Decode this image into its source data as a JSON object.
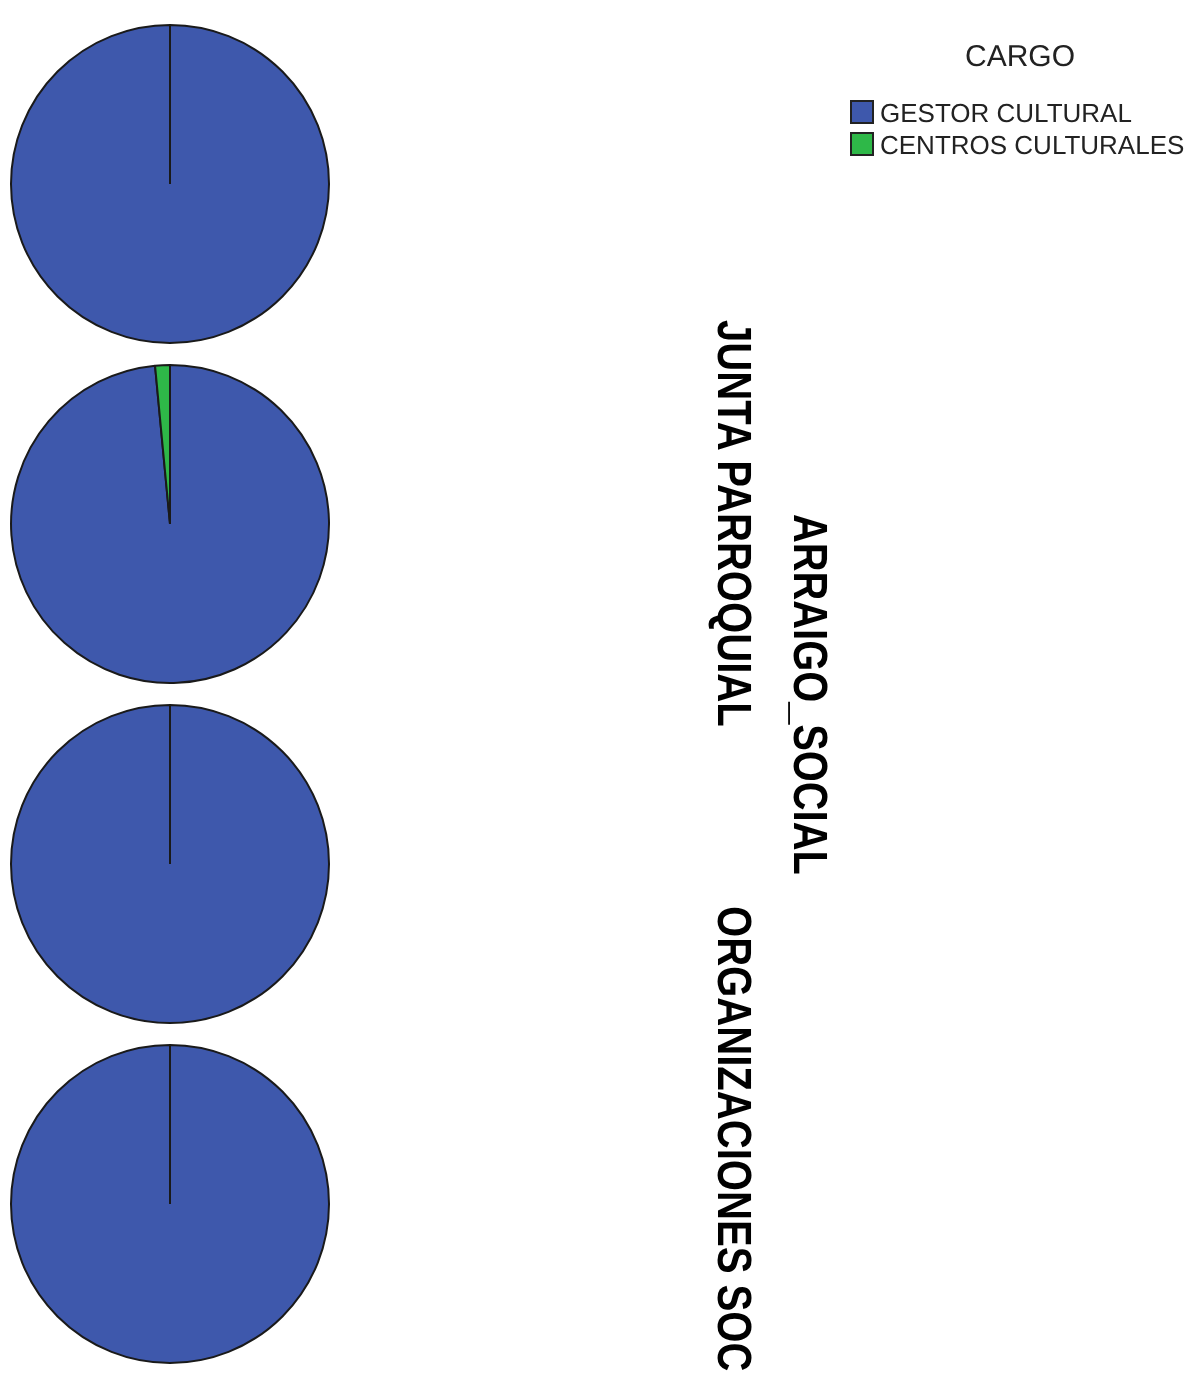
{
  "chart_data": [
    {
      "type": "pie",
      "categories": [
        "GESTOR CULTURAL",
        "CENTROS CULTURALES"
      ],
      "values": [
        100,
        0
      ],
      "colors": [
        "#3e58ac",
        "#2eb848"
      ],
      "legend": "top right",
      "legend_title": "CARGO",
      "annotations": [
        "ARRAIGO_SOCIAL"
      ]
    },
    {
      "type": "pie",
      "title": "JUNTA PARROQUIAL",
      "categories": [
        null,
        null
      ],
      "values": [
        98.5,
        1.5
      ],
      "colors": [
        "#3e58ac",
        "#2eb848"
      ]
    },
    {
      "type": "pie",
      "categories": [
        null,
        null
      ],
      "values": [
        100,
        0
      ],
      "colors": [
        "#3e58ac",
        "#2eb848"
      ]
    },
    {
      "type": "pie",
      "title": "ORGANIZACIONES SOC",
      "categories": [
        null,
        null
      ],
      "values": [
        100,
        0
      ],
      "colors": [
        "#3e58ac",
        "#2eb848"
      ]
    }
  ]
}
